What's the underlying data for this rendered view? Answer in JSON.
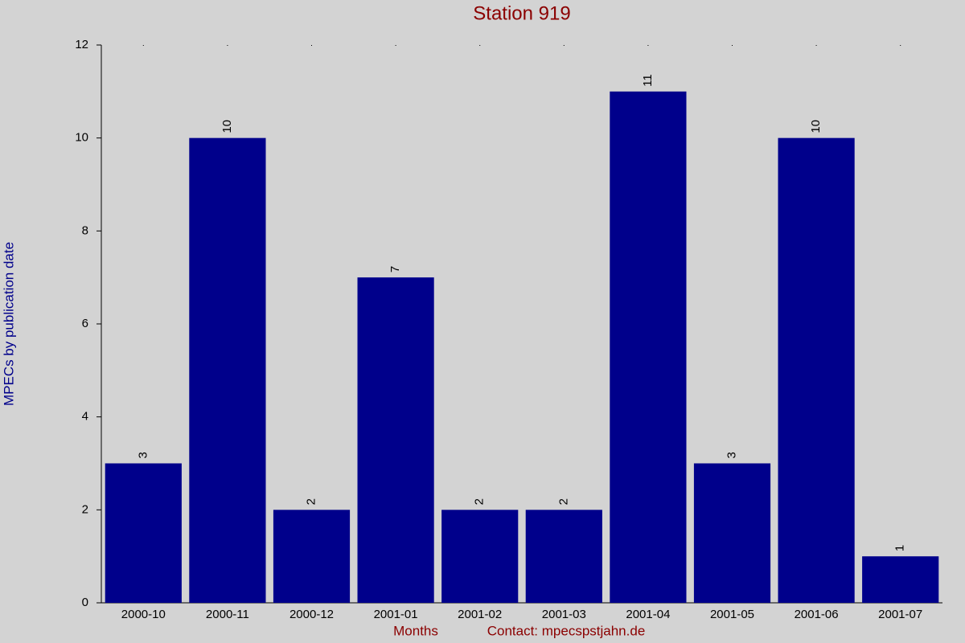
{
  "chart_data": {
    "type": "bar",
    "title": "Station 919",
    "x_label": "Months",
    "y_label": "MPECs by publication date",
    "annotation": "Contact: mpecspstjahn.de",
    "categories": [
      "2000-10",
      "2000-11",
      "2000-12",
      "2001-01",
      "2001-02",
      "2001-03",
      "2001-04",
      "2001-05",
      "2001-06",
      "2001-07"
    ],
    "values": [
      3,
      10,
      2,
      7,
      2,
      2,
      11,
      3,
      10,
      1
    ],
    "color": "#00008b",
    "ylim": [
      0,
      12
    ],
    "yticks": [
      0,
      2,
      4,
      6,
      8,
      10,
      12
    ]
  }
}
